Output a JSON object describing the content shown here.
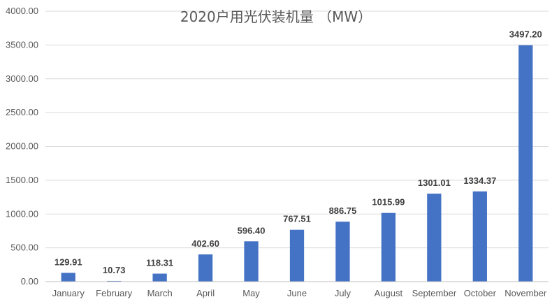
{
  "chart_data": {
    "type": "bar",
    "title": "2020户用光伏装机量 （MW）",
    "categories": [
      "January",
      "February",
      "March",
      "April",
      "May",
      "June",
      "July",
      "August",
      "September",
      "October",
      "November"
    ],
    "values": [
      129.91,
      10.73,
      118.31,
      402.6,
      596.4,
      767.51,
      886.75,
      1015.99,
      1301.01,
      1334.37,
      3497.2
    ],
    "value_labels": [
      "129.91",
      "10.73",
      "118.31",
      "402.60",
      "596.40",
      "767.51",
      "886.75",
      "1015.99",
      "1301.01",
      "1334.37",
      "3497.20"
    ],
    "ylim": [
      0,
      4000
    ],
    "y_ticks": [
      "0.00",
      "500.00",
      "1000.00",
      "1500.00",
      "2000.00",
      "2500.00",
      "3000.00",
      "3500.00",
      "4000.00"
    ],
    "xlabel": "",
    "ylabel": "",
    "grid": true,
    "legend": "none",
    "bar_color": "#4472C4"
  }
}
